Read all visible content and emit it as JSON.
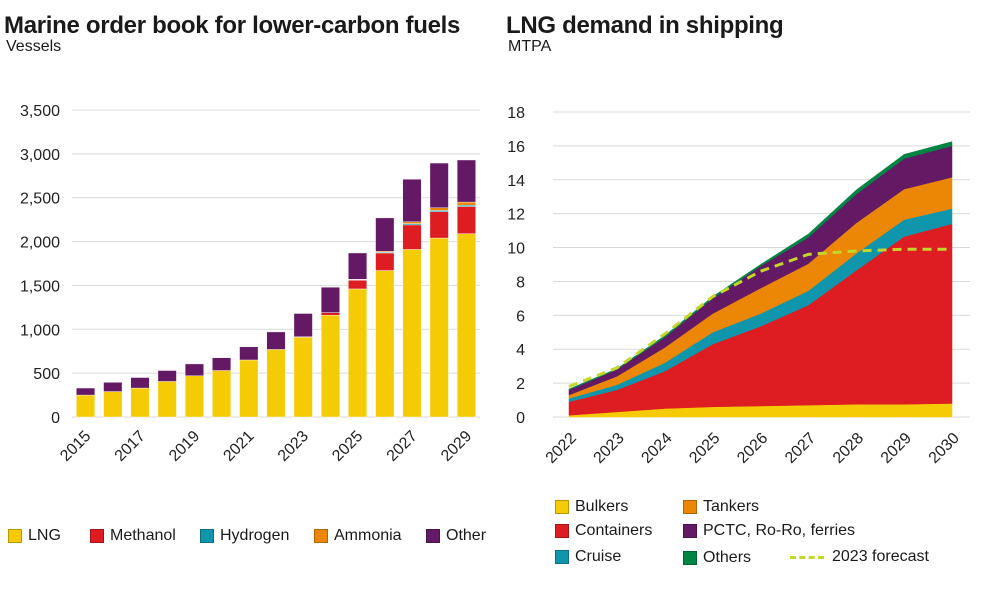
{
  "colors": {
    "lng": "#f5cb05",
    "methanol": "#dd1d21",
    "hydrogen": "#0f96ad",
    "ammonia": "#eb8705",
    "other": "#641964",
    "bulkers": "#f5cb05",
    "containers": "#dd1d21",
    "cruise": "#0f96ad",
    "tankers": "#eb8705",
    "pctc": "#641964",
    "others": "#008443",
    "forecast": "#c3d62a",
    "grid": "#d9d9d9"
  },
  "chart_data": [
    {
      "type": "bar",
      "stacked": true,
      "title": "Marine order book for lower-carbon fuels",
      "subtitle": "Vessels",
      "categories": [
        "2015",
        "2016",
        "2017",
        "2018",
        "2019",
        "2020",
        "2021",
        "2022",
        "2023",
        "2024",
        "2025",
        "2026",
        "2027",
        "2028",
        "2029"
      ],
      "x_tick_labels": [
        "2015",
        "2017",
        "2019",
        "2021",
        "2023",
        "2025",
        "2027",
        "2029"
      ],
      "ylim": [
        0,
        3500
      ],
      "y_ticks": [
        "0",
        "500",
        "1,000",
        "1,500",
        "2,000",
        "2,500",
        "3,000",
        "3,500"
      ],
      "y_tick_values": [
        0,
        500,
        1000,
        1500,
        2000,
        2500,
        3000,
        3500
      ],
      "grid": true,
      "legend_position": "bottom",
      "series": [
        {
          "name": "LNG",
          "key": "lng",
          "values": [
            250,
            290,
            330,
            405,
            470,
            530,
            650,
            770,
            910,
            1160,
            1460,
            1670,
            1910,
            2040,
            2090
          ]
        },
        {
          "name": "Methanol",
          "key": "methanol",
          "values": [
            0,
            0,
            0,
            0,
            0,
            0,
            0,
            0,
            5,
            30,
            100,
            200,
            280,
            300,
            310
          ]
        },
        {
          "name": "Hydrogen",
          "key": "hydrogen",
          "values": [
            0,
            0,
            0,
            0,
            0,
            0,
            0,
            0,
            0,
            0,
            5,
            10,
            15,
            15,
            15
          ]
        },
        {
          "name": "Ammonia",
          "key": "ammonia",
          "values": [
            0,
            0,
            0,
            0,
            0,
            0,
            0,
            0,
            0,
            0,
            5,
            10,
            20,
            30,
            35
          ]
        },
        {
          "name": "Other",
          "key": "other",
          "values": [
            80,
            105,
            120,
            125,
            135,
            145,
            150,
            200,
            265,
            290,
            300,
            380,
            485,
            510,
            480
          ]
        }
      ]
    },
    {
      "type": "area",
      "stacked": true,
      "title": "LNG demand in shipping",
      "subtitle": "MTPA",
      "x": [
        "2022",
        "2023",
        "2024",
        "2025",
        "2026",
        "2027",
        "2028",
        "2029",
        "2030"
      ],
      "ylim": [
        0,
        18
      ],
      "y_ticks": [
        "0",
        "2",
        "4",
        "6",
        "8",
        "10",
        "12",
        "14",
        "16",
        "18"
      ],
      "y_tick_values": [
        0,
        2,
        4,
        6,
        8,
        10,
        12,
        14,
        16,
        18
      ],
      "grid": true,
      "legend_position": "bottom",
      "series": [
        {
          "name": "Bulkers",
          "key": "bulkers",
          "values": [
            0.1,
            0.3,
            0.5,
            0.6,
            0.65,
            0.7,
            0.75,
            0.75,
            0.8
          ]
        },
        {
          "name": "Containers",
          "key": "containers",
          "values": [
            0.8,
            1.3,
            2.2,
            3.7,
            4.7,
            5.9,
            7.9,
            9.9,
            10.6
          ]
        },
        {
          "name": "Cruise",
          "key": "cruise",
          "values": [
            0.2,
            0.3,
            0.5,
            0.7,
            0.75,
            0.85,
            1.0,
            1.0,
            0.9
          ]
        },
        {
          "name": "Tankers",
          "key": "tankers",
          "values": [
            0.2,
            0.5,
            0.9,
            1.1,
            1.5,
            1.6,
            1.8,
            1.8,
            1.85
          ]
        },
        {
          "name": "PCTC, Ro-Ro, ferries",
          "key": "pctc",
          "values": [
            0.3,
            0.4,
            0.6,
            0.9,
            1.3,
            1.55,
            1.7,
            1.8,
            1.85
          ]
        },
        {
          "name": "Others",
          "key": "others",
          "values": [
            0.05,
            0.05,
            0.1,
            0.1,
            0.1,
            0.2,
            0.25,
            0.25,
            0.25
          ]
        }
      ],
      "forecast": {
        "name": "2023 forecast",
        "values": [
          1.8,
          2.9,
          4.9,
          7.1,
          8.6,
          9.6,
          9.8,
          9.9,
          9.9
        ]
      }
    }
  ],
  "legend1": [
    {
      "label": "LNG",
      "key": "lng"
    },
    {
      "label": "Methanol",
      "key": "methanol"
    },
    {
      "label": "Hydrogen",
      "key": "hydrogen"
    },
    {
      "label": "Ammonia",
      "key": "ammonia"
    },
    {
      "label": "Other",
      "key": "other"
    }
  ],
  "legend2": [
    {
      "label": "Bulkers",
      "key": "bulkers"
    },
    {
      "label": "Tankers",
      "key": "tankers"
    },
    {
      "label": "Containers",
      "key": "containers"
    },
    {
      "label": "PCTC, Ro-Ro, ferries",
      "key": "pctc"
    },
    {
      "label": "Cruise",
      "key": "cruise"
    },
    {
      "label": "Others",
      "key": "others"
    },
    {
      "label": "2023 forecast",
      "key": "forecast"
    }
  ]
}
